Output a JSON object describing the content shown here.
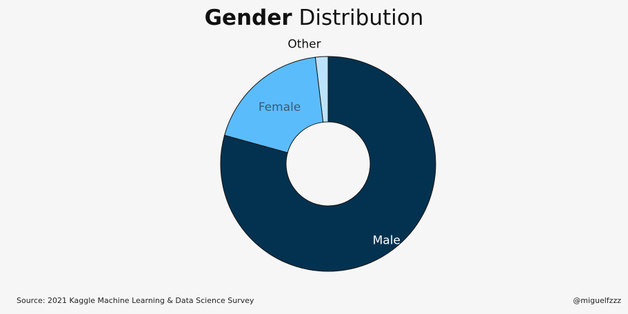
{
  "header": {
    "title_bold": "Gender",
    "title_rest": "Distribution"
  },
  "footer": {
    "source": "Source: 2021 Kaggle Machine Learning & Data Science Survey",
    "credit": "@miguelfzzz"
  },
  "chart_data": {
    "type": "pie",
    "title": "Gender Distribution",
    "donut": true,
    "categories": [
      "Male",
      "Female",
      "Other"
    ],
    "values": [
      79.3,
      18.8,
      1.9
    ],
    "unit": "%",
    "colors": [
      "#033250",
      "#5bbcfc",
      "#bde3fc"
    ],
    "label_colors": [
      "#ffffff",
      "#3a5a78",
      "#111111"
    ],
    "start_angle_deg": 0,
    "direction": "clockwise"
  }
}
